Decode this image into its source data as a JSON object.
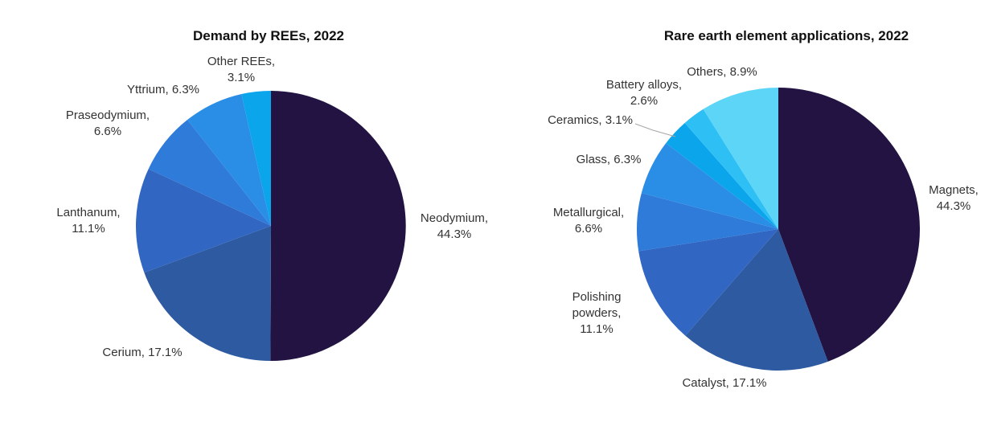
{
  "chart_data": [
    {
      "type": "pie",
      "title": "Demand by REEs, 2022",
      "start_angle_deg": 0,
      "direction": "clockwise",
      "slices": [
        {
          "label": "Neodymium",
          "value": 44.3,
          "text": [
            "Neodymium,",
            "44.3%"
          ],
          "color": "#221342"
        },
        {
          "label": "Cerium",
          "value": 17.1,
          "text": [
            "Cerium, 17.1%"
          ],
          "color": "#2d5aa0"
        },
        {
          "label": "Lanthanum",
          "value": 11.1,
          "text": [
            "Lanthanum,",
            "11.1%"
          ],
          "color": "#3166c2"
        },
        {
          "label": "Praseodymium",
          "value": 6.6,
          "text": [
            "Praseodymium,",
            "6.6%"
          ],
          "color": "#2f7bd9"
        },
        {
          "label": "Yttrium",
          "value": 6.3,
          "text": [
            "Yttrium, 6.3%"
          ],
          "color": "#2a8ee6"
        },
        {
          "label": "Other REEs",
          "value": 3.1,
          "text": [
            "Other REEs,",
            "3.1%"
          ],
          "color": "#0ba5ec"
        }
      ]
    },
    {
      "type": "pie",
      "title": "Rare earth element applications, 2022",
      "start_angle_deg": 0,
      "direction": "clockwise",
      "slices": [
        {
          "label": "Magnets",
          "value": 44.3,
          "text": [
            "Magnets,",
            "44.3%"
          ],
          "color": "#221342"
        },
        {
          "label": "Catalyst",
          "value": 17.1,
          "text": [
            "Catalyst, 17.1%"
          ],
          "color": "#2d5aa0"
        },
        {
          "label": "Polishing powders",
          "value": 11.1,
          "text": [
            "Polishing",
            "powders,",
            "11.1%"
          ],
          "color": "#3166c2"
        },
        {
          "label": "Metallurgical",
          "value": 6.6,
          "text": [
            "Metallurgical,",
            "6.6%"
          ],
          "color": "#2f7bd9"
        },
        {
          "label": "Glass",
          "value": 6.3,
          "text": [
            "Glass, 6.3%"
          ],
          "color": "#2a8ee6"
        },
        {
          "label": "Ceramics",
          "value": 3.1,
          "text": [
            "Ceramics, 3.1%"
          ],
          "color": "#0ba5ec"
        },
        {
          "label": "Battery alloys",
          "value": 2.6,
          "text": [
            "Battery alloys,",
            "2.6%"
          ],
          "color": "#2ec0f5"
        },
        {
          "label": "Others",
          "value": 8.9,
          "text": [
            "Others, 8.9%"
          ],
          "color": "#5cd5f7"
        }
      ]
    }
  ]
}
